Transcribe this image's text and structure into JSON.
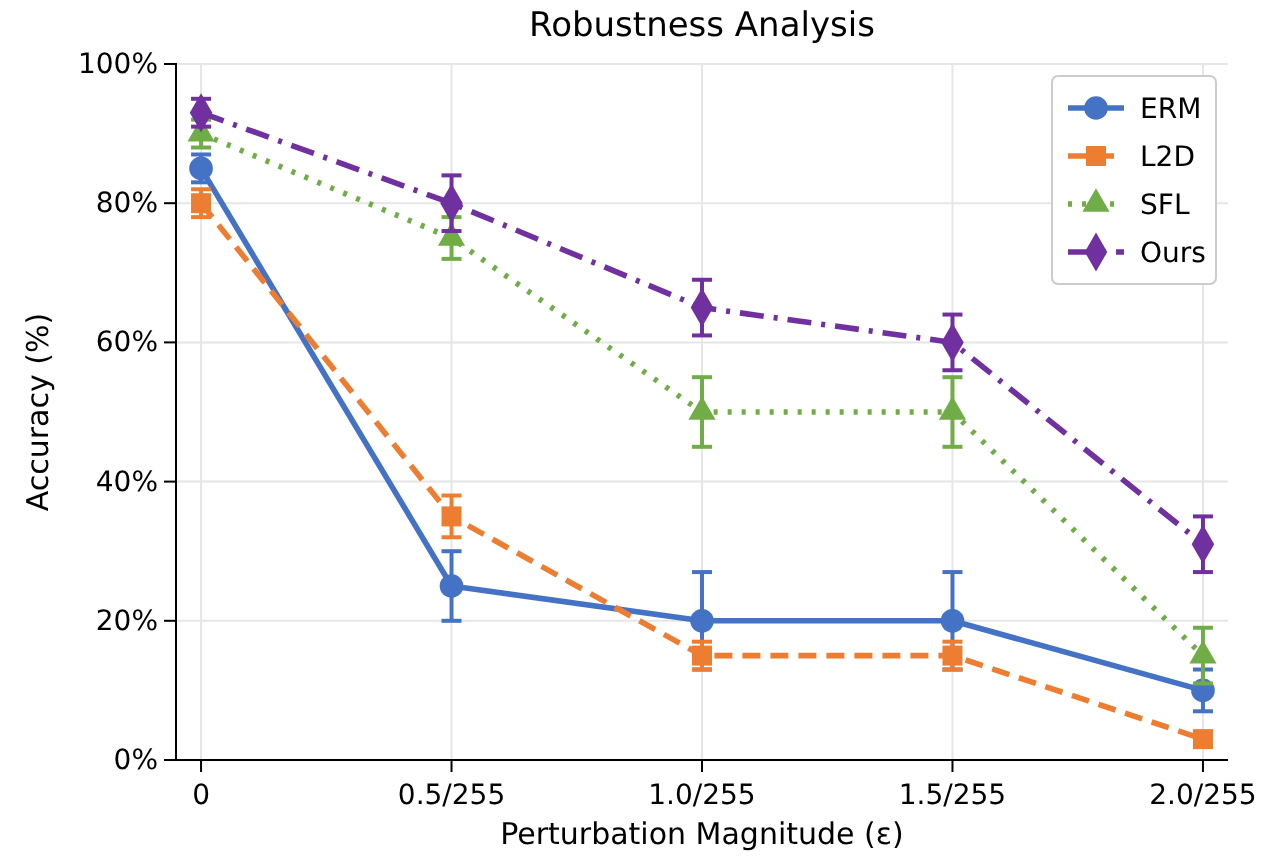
{
  "chart_data": {
    "type": "line",
    "title": "Robustness Analysis",
    "xlabel": "Perturbation Magnitude (ε)",
    "ylabel": "Accuracy (%)",
    "categories": [
      "0",
      "0.5/255",
      "1.0/255",
      "1.5/255",
      "2.0/255"
    ],
    "ylim": [
      0,
      100
    ],
    "yticks": [
      {
        "value": 0,
        "label": "0%"
      },
      {
        "value": 20,
        "label": "20%"
      },
      {
        "value": 40,
        "label": "40%"
      },
      {
        "value": 60,
        "label": "60%"
      },
      {
        "value": 80,
        "label": "80%"
      },
      {
        "value": 100,
        "label": "100%"
      }
    ],
    "grid": true,
    "legend": "top right",
    "series": [
      {
        "name": "ERM",
        "color": "#4472c4",
        "values": [
          85,
          25,
          20,
          20,
          10
        ],
        "errors": [
          2,
          5,
          7,
          7,
          3
        ],
        "marker": "circle",
        "line_style": "solid"
      },
      {
        "name": "L2D",
        "color": "#ed7d31",
        "values": [
          80,
          35,
          15,
          15,
          3
        ],
        "errors": [
          2,
          3,
          2,
          2,
          1
        ],
        "marker": "square",
        "line_style": "dashed"
      },
      {
        "name": "SFL",
        "color": "#70ad47",
        "values": [
          90,
          75,
          50,
          50,
          15
        ],
        "errors": [
          2,
          3,
          5,
          5,
          4
        ],
        "marker": "triangle",
        "line_style": "dotted"
      },
      {
        "name": "Ours",
        "color": "#7030a0",
        "values": [
          93,
          80,
          65,
          60,
          31
        ],
        "errors": [
          2,
          4,
          4,
          4,
          4
        ],
        "marker": "diamond",
        "line_style": "dashdot"
      }
    ]
  }
}
